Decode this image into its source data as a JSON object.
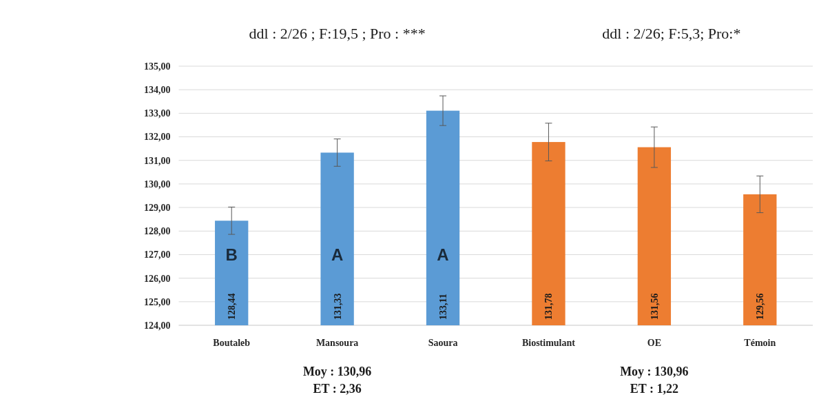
{
  "chart_data": {
    "type": "bar",
    "categories": [
      "Boutaleb",
      "Mansoura",
      "Saoura",
      "Biostimulant",
      "OE",
      "Témoin"
    ],
    "values": [
      128.44,
      131.33,
      133.11,
      131.78,
      131.56,
      129.56
    ],
    "colors": [
      "#5b9bd5",
      "#5b9bd5",
      "#5b9bd5",
      "#ed7d31",
      "#ed7d31",
      "#ed7d31"
    ],
    "errors": [
      0.58,
      0.58,
      0.63,
      0.8,
      0.86,
      0.78
    ],
    "value_labels": [
      "128,44",
      "131,33",
      "133,11",
      "131,78",
      "131,56",
      "129,56"
    ],
    "ylim": [
      124,
      135
    ],
    "yticks": [
      {
        "value": 124,
        "label": "124,00"
      },
      {
        "value": 125,
        "label": "125,00"
      },
      {
        "value": 126,
        "label": "126,00"
      },
      {
        "value": 127,
        "label": "127,00"
      },
      {
        "value": 128,
        "label": "128,00"
      },
      {
        "value": 129,
        "label": "129,00"
      },
      {
        "value": 130,
        "label": "130,00"
      },
      {
        "value": 131,
        "label": "131,00"
      },
      {
        "value": 132,
        "label": "132,00"
      },
      {
        "value": 133,
        "label": "133,00"
      },
      {
        "value": 134,
        "label": "134,00"
      },
      {
        "value": 135,
        "label": "135,00"
      }
    ],
    "grid": "y",
    "annotations": [
      "ddl : 2/26 ; F:19,5 ; Pro : ***",
      "ddl : 2/26; F:5,3; Pro:*",
      "Moy : 130,96\nET : 2,36",
      "Moy : 130,96\nET : 1,22",
      "B",
      "A",
      "A"
    ]
  }
}
